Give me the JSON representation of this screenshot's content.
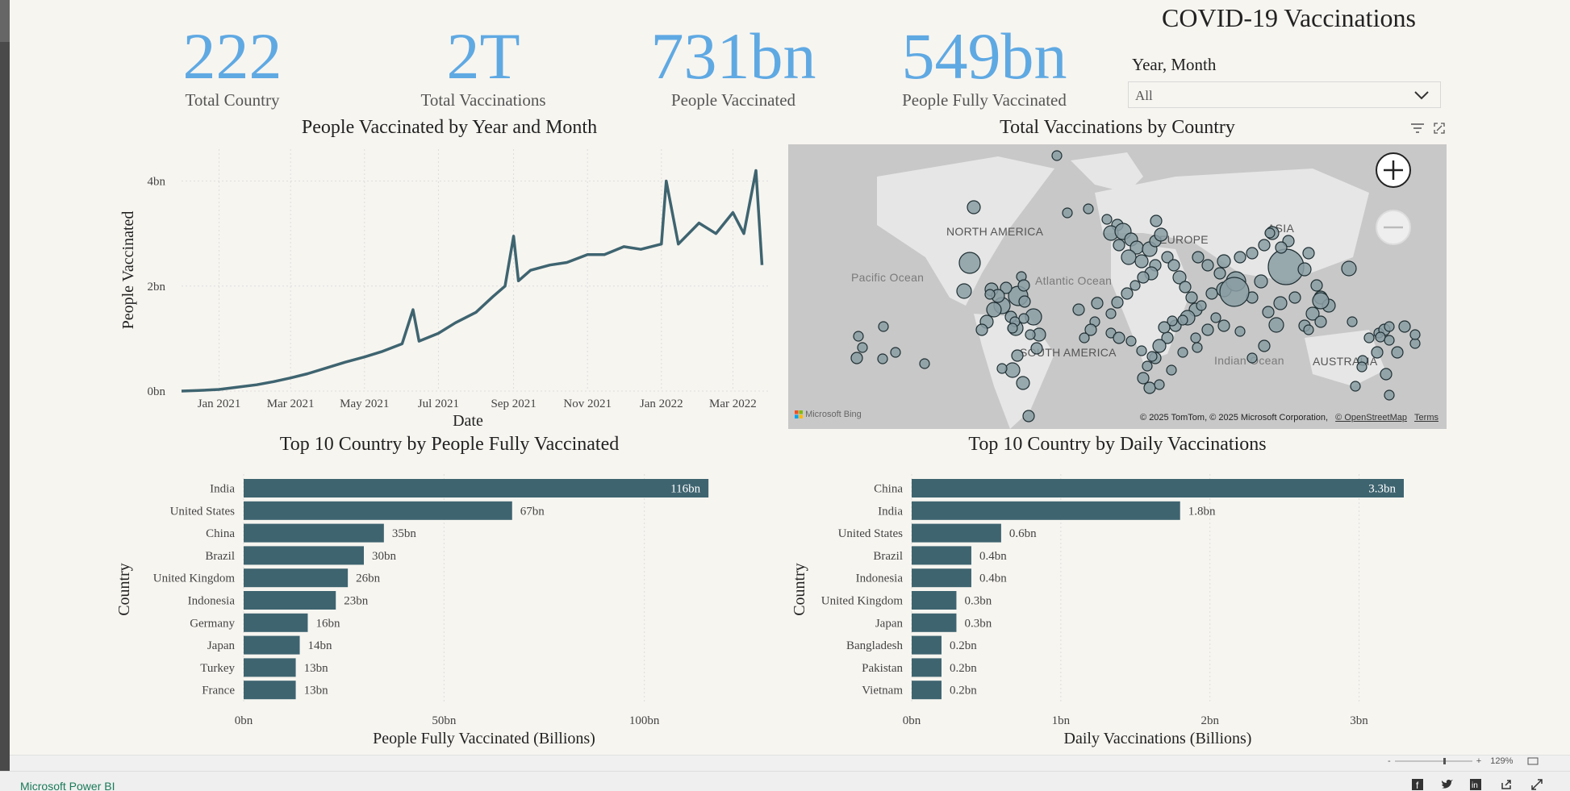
{
  "report": {
    "title": "COVID-19 Vaccinations"
  },
  "kpis": [
    {
      "value": "222",
      "label": "Total Country"
    },
    {
      "value": "2T",
      "label": "Total Vaccinations"
    },
    {
      "value": "731bn",
      "label": "People Vaccinated"
    },
    {
      "value": "549bn",
      "label": "People Fully Vaccinated"
    }
  ],
  "slicer": {
    "label": "Year, Month",
    "value": "All"
  },
  "line_visual": {
    "title": "People Vaccinated by Year and Month"
  },
  "map_visual": {
    "title": "Total Vaccinations by Country",
    "labels": {
      "north_america": "NORTH AMERICA",
      "europe": "EUROPE",
      "asia": "ASIA",
      "south_america": "SOUTH AMERICA",
      "australia": "AUSTRALIA",
      "pacific": "Pacific Ocean",
      "atlantic": "Atlantic Ocean",
      "indian": "Indian Ocean"
    },
    "attribution": "© 2025 TomTom, © 2025 Microsoft Corporation,",
    "osm": "© OpenStreetMap",
    "terms": "Terms",
    "bing": "Microsoft Bing"
  },
  "bar1_visual": {
    "title": "Top 10 Country by People Fully Vaccinated"
  },
  "bar2_visual": {
    "title": "Top 10 Country by Daily Vaccinations"
  },
  "footer": {
    "brand": "Microsoft Power BI",
    "zoom": "129%",
    "zoom_minus": "-",
    "zoom_plus": "+"
  },
  "colors": {
    "kpi": "#5fa9e3",
    "series": "#3e6470",
    "background": "#f7f5f0"
  },
  "icons": [
    "filter-icon",
    "focus-mode-icon",
    "zoom-in-icon",
    "zoom-out-icon",
    "chevron-down-icon",
    "facebook-icon",
    "twitter-icon",
    "linkedin-icon",
    "share-icon",
    "fullscreen-icon",
    "fit-page-icon"
  ],
  "chart_data": [
    {
      "type": "line",
      "title": "People Vaccinated by Year and Month",
      "xlabel": "Date",
      "ylabel": "People Vaccinated",
      "x_ticks": [
        "Jan 2021",
        "Mar 2021",
        "May 2021",
        "Jul 2021",
        "Sep 2021",
        "Nov 2021",
        "Jan 2022",
        "Mar 2022"
      ],
      "y_ticks": [
        "0bn",
        "2bn",
        "4bn"
      ],
      "ylim": [
        0,
        4.3
      ],
      "grid": true,
      "series": [
        {
          "x": [
            "2020-12-01",
            "2020-12-15",
            "2021-01-01",
            "2021-01-15",
            "2021-02-01",
            "2021-02-15",
            "2021-03-01",
            "2021-03-15",
            "2021-04-01",
            "2021-04-15",
            "2021-05-01",
            "2021-05-15",
            "2021-06-01",
            "2021-06-10",
            "2021-06-15",
            "2021-07-01",
            "2021-07-15",
            "2021-08-01",
            "2021-08-15",
            "2021-08-25",
            "2021-09-01",
            "2021-09-05",
            "2021-09-15",
            "2021-10-01",
            "2021-10-15",
            "2021-11-01",
            "2021-11-15",
            "2021-12-01",
            "2021-12-15",
            "2022-01-01",
            "2022-01-05",
            "2022-01-15",
            "2022-02-01",
            "2022-02-15",
            "2022-03-01",
            "2022-03-10",
            "2022-03-20",
            "2022-03-25"
          ],
          "y": [
            0.0,
            0.01,
            0.03,
            0.07,
            0.12,
            0.18,
            0.25,
            0.33,
            0.45,
            0.55,
            0.65,
            0.75,
            0.9,
            1.55,
            0.95,
            1.1,
            1.3,
            1.5,
            1.8,
            2.0,
            2.95,
            2.1,
            2.3,
            2.4,
            2.45,
            2.6,
            2.6,
            2.75,
            2.7,
            2.8,
            4.0,
            2.8,
            3.2,
            3.0,
            3.4,
            3.0,
            4.2,
            2.4
          ]
        }
      ]
    },
    {
      "type": "bar",
      "title": "Top 10 Country by People Fully Vaccinated",
      "xlabel": "People Fully Vaccinated (Billions)",
      "ylabel": "Country",
      "categories": [
        "India",
        "United States",
        "China",
        "Brazil",
        "United Kingdom",
        "Indonesia",
        "Germany",
        "Japan",
        "Turkey",
        "France"
      ],
      "values": [
        116,
        67,
        35,
        30,
        26,
        23,
        16,
        14,
        13,
        13
      ],
      "labels": [
        "116bn",
        "67bn",
        "35bn",
        "30bn",
        "26bn",
        "23bn",
        "16bn",
        "14bn",
        "13bn",
        "13bn"
      ],
      "x_ticks": [
        "0bn",
        "50bn",
        "100bn"
      ],
      "xlim": [
        0,
        120
      ]
    },
    {
      "type": "bar",
      "title": "Top 10 Country by Daily Vaccinations",
      "xlabel": "Daily Vaccinations (Billions)",
      "ylabel": "Country",
      "categories": [
        "China",
        "India",
        "United States",
        "Brazil",
        "Indonesia",
        "United Kingdom",
        "Japan",
        "Bangladesh",
        "Pakistan",
        "Vietnam"
      ],
      "values": [
        3.3,
        1.8,
        0.6,
        0.4,
        0.4,
        0.3,
        0.3,
        0.2,
        0.2,
        0.2
      ],
      "labels": [
        "3.3bn",
        "1.8bn",
        "0.6bn",
        "0.4bn",
        "0.4bn",
        "0.3bn",
        "0.3bn",
        "0.2bn",
        "0.2bn",
        "0.2bn"
      ],
      "x_ticks": [
        "0bn",
        "1bn",
        "2bn",
        "3bn"
      ],
      "xlim": [
        0,
        3.3
      ]
    }
  ]
}
